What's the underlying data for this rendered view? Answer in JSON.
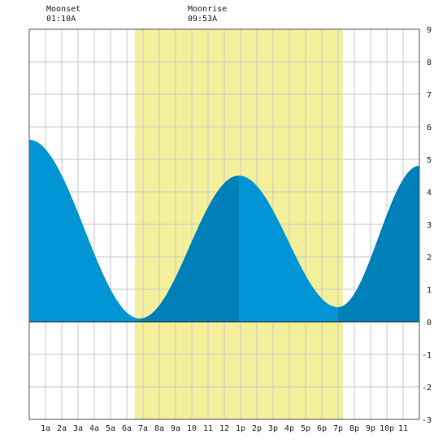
{
  "header": {
    "moonset": {
      "label": "Moonset",
      "time": "01:10A"
    },
    "moonrise": {
      "label": "Moonrise",
      "time": "09:53A"
    }
  },
  "colors": {
    "daylight": "#f3ef9b",
    "tide_fill": "#0096d6",
    "tide_fill_dark": "#0080b8",
    "grid": "#c8c8c8",
    "zero_line": "#222222"
  },
  "chart_data": {
    "type": "area",
    "title": "",
    "xlabel": "",
    "ylabel": "",
    "x_ticks": [
      "1a",
      "2a",
      "3a",
      "4a",
      "5a",
      "6a",
      "7a",
      "8a",
      "9a",
      "10",
      "11",
      "12",
      "1p",
      "2p",
      "3p",
      "4p",
      "5p",
      "6p",
      "7p",
      "8p",
      "9p",
      "10p",
      "11"
    ],
    "x_tick_hours": [
      1,
      2,
      3,
      4,
      5,
      6,
      7,
      8,
      9,
      10,
      11,
      12,
      13,
      14,
      15,
      16,
      17,
      18,
      19,
      20,
      21,
      22,
      23
    ],
    "y_ticks": [
      -3,
      -2,
      -1,
      0,
      1,
      2,
      3,
      4,
      5,
      6,
      7,
      8,
      9
    ],
    "xlim": [
      0,
      24
    ],
    "ylim": [
      -3,
      9
    ],
    "grid": true,
    "daylight": {
      "start_hour": 6.5,
      "end_hour": 19.3
    },
    "tide_extrema": [
      {
        "hour": 0.0,
        "height": 5.6,
        "type": "high"
      },
      {
        "hour": 6.8,
        "height": 0.1,
        "type": "low"
      },
      {
        "hour": 12.9,
        "height": 4.5,
        "type": "high"
      },
      {
        "hour": 19.0,
        "height": 0.45,
        "type": "low"
      },
      {
        "hour": 24.0,
        "height": 4.8,
        "type": "high"
      }
    ],
    "rising_intervals": [
      [
        6.8,
        12.9
      ],
      [
        19.0,
        24.0
      ]
    ]
  }
}
